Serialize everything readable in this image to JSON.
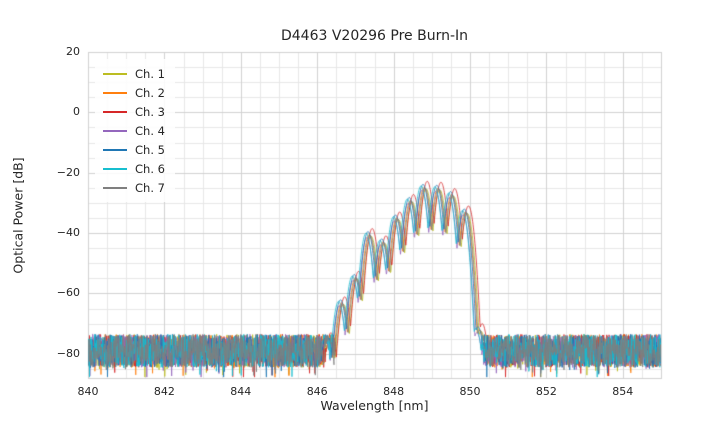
{
  "chart_data": {
    "type": "line",
    "title": "D4463 V20296 Pre Burn-In",
    "xlabel": "Wavelength [nm]",
    "ylabel": "Optical Power [dB]",
    "xlim": [
      840,
      855
    ],
    "ylim": [
      -88,
      20
    ],
    "xticks": [
      {
        "v": 840,
        "label": "840"
      },
      {
        "v": 842,
        "label": "842"
      },
      {
        "v": 844,
        "label": "844"
      },
      {
        "v": 846,
        "label": "846"
      },
      {
        "v": 848,
        "label": "848"
      },
      {
        "v": 850,
        "label": "850"
      },
      {
        "v": 852,
        "label": "852"
      },
      {
        "v": 854,
        "label": "854"
      }
    ],
    "yticks": [
      {
        "v": 20,
        "label": "20"
      },
      {
        "v": 0,
        "label": "0"
      },
      {
        "v": -20,
        "label": "−20"
      },
      {
        "v": -40,
        "label": "−40"
      },
      {
        "v": -60,
        "label": "−60"
      },
      {
        "v": -80,
        "label": "−80"
      }
    ],
    "grid": {
      "major": true,
      "minor": true,
      "minor_x_step": 0.5,
      "minor_y_step": 5
    },
    "legend_position": "upper left",
    "series": [
      {
        "name": "Ch. 1",
        "color": "#bcbd22",
        "wl_offset": 0.03,
        "amp_offset": -2.5,
        "seed": 11
      },
      {
        "name": "Ch. 2",
        "color": "#ff7f0e",
        "wl_offset": -0.02,
        "amp_offset": -2.0,
        "seed": 22
      },
      {
        "name": "Ch. 3",
        "color": "#d62728",
        "wl_offset": 0.06,
        "amp_offset": 0.0,
        "seed": 33
      },
      {
        "name": "Ch. 4",
        "color": "#9467bd",
        "wl_offset": -0.08,
        "amp_offset": -3.0,
        "seed": 44
      },
      {
        "name": "Ch. 5",
        "color": "#1f77b4",
        "wl_offset": -0.05,
        "amp_offset": -1.0,
        "seed": 55
      },
      {
        "name": "Ch. 6",
        "color": "#17becf",
        "wl_offset": -0.1,
        "amp_offset": -1.5,
        "seed": 66
      },
      {
        "name": "Ch. 7",
        "color": "#7f7f7f",
        "wl_offset": 0.0,
        "amp_offset": -2.2,
        "seed": 77
      }
    ],
    "spectral_model": {
      "description": "Multimode laser spectrum: flat noise floor near -80 dB across 840-855 nm, longitudinal-mode comb between ~846.3 and ~850.3 nm rising to a peak of about -22 dB near 849 nm with a sharp cutoff just above 850 nm.",
      "noise_floor_db": -79,
      "noise_spread_db": 5.5,
      "noise_spike_prob": 0.05,
      "noise_spike_extra_db": 6,
      "mode_spacing_nm": 0.36,
      "mode_start_nm": 846.3,
      "mode_end_nm": 850.3,
      "mode_valley_k": 430,
      "peak_power_db": -22.5,
      "peak_wavelength_nm": 848.9,
      "envelope_points": [
        [
          846.15,
          -80
        ],
        [
          846.45,
          -66
        ],
        [
          846.75,
          -59
        ],
        [
          847.05,
          -52
        ],
        [
          847.35,
          -38
        ],
        [
          847.65,
          -43
        ],
        [
          847.95,
          -36
        ],
        [
          848.25,
          -30
        ],
        [
          848.55,
          -26
        ],
        [
          848.85,
          -22.5
        ],
        [
          849.15,
          -23
        ],
        [
          849.45,
          -24.5
        ],
        [
          849.75,
          -27
        ],
        [
          850.05,
          -35
        ],
        [
          850.2,
          -62
        ],
        [
          850.35,
          -82
        ]
      ],
      "x_step_nm": 0.01
    }
  }
}
